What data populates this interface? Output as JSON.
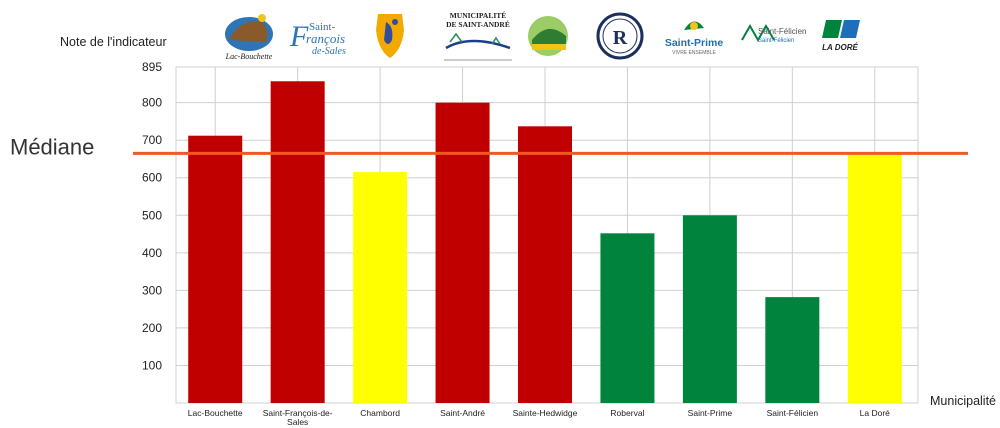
{
  "chart_data": {
    "type": "bar",
    "ylabel": "Note de l'indicateur",
    "xlabel": "Municipalité",
    "ylim": [
      0,
      895
    ],
    "yticks": [
      100,
      200,
      300,
      400,
      500,
      600,
      700,
      800,
      895
    ],
    "grid": true,
    "categories": [
      "Lac-Bouchette",
      "Saint-François-de-Sales",
      "Chambord",
      "Saint-André",
      "Sainte-Hedwidge",
      "Roberval",
      "Saint-Prime",
      "Saint-Félicien",
      "La Doré"
    ],
    "values": [
      712,
      857,
      615,
      800,
      737,
      452,
      500,
      282,
      665
    ],
    "bar_colors": [
      "#c00000",
      "#c00000",
      "#ffff00",
      "#c00000",
      "#c00000",
      "#00843d",
      "#00843d",
      "#00843d",
      "#ffff00"
    ],
    "median": {
      "label": "Médiane",
      "value": 665,
      "color": "#ee5a24"
    }
  },
  "logos": [
    {
      "name": "lac-bouchette-logo",
      "text": "Lac-Bouchette"
    },
    {
      "name": "saint-francois-logo",
      "text": "Saint-François de-Sales"
    },
    {
      "name": "chambord-logo",
      "text": ""
    },
    {
      "name": "saint-andre-logo",
      "text": "MUNICIPALITÉ DE SAINT-ANDRÉ"
    },
    {
      "name": "sainte-hedwidge-logo",
      "text": ""
    },
    {
      "name": "roberval-logo",
      "text": ""
    },
    {
      "name": "saint-prime-logo",
      "text": "Saint-Prime"
    },
    {
      "name": "saint-felicien-logo",
      "text": "Saint-Félicien"
    },
    {
      "name": "la-dore-logo",
      "text": "LA DORÉ"
    }
  ]
}
